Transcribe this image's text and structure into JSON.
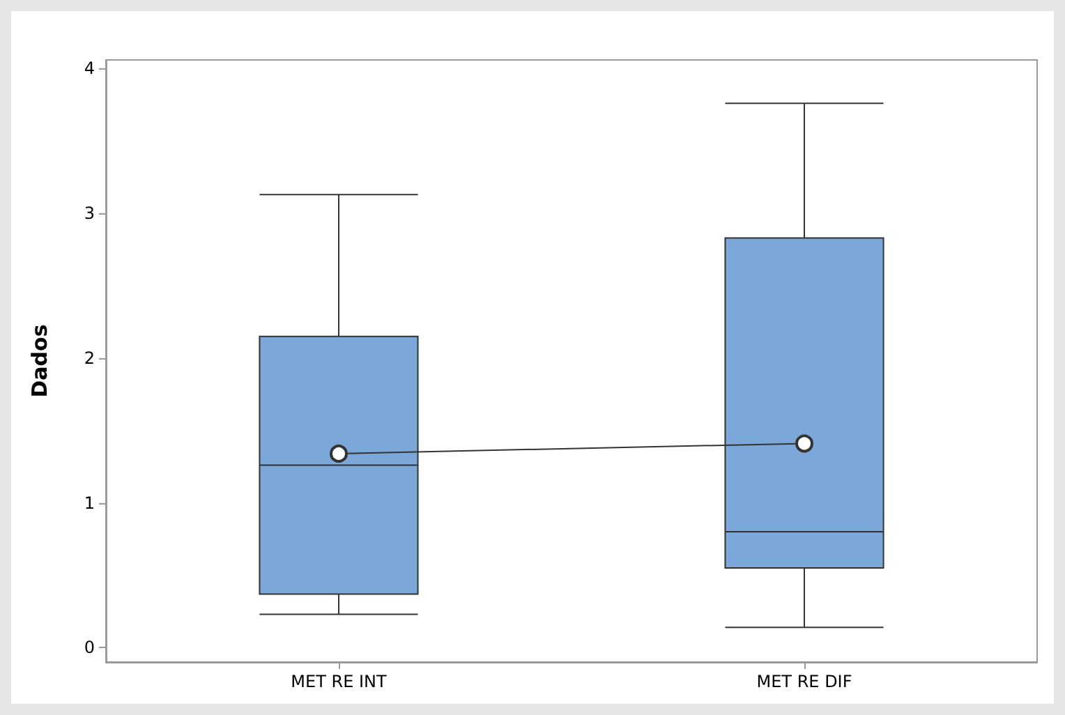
{
  "chart_data": {
    "type": "box",
    "ylabel": "Dados",
    "categories": [
      "MET RE INT",
      "MET RE DIF"
    ],
    "ylim": [
      -0.1,
      4.06
    ],
    "yticks": [
      0,
      1,
      2,
      3,
      4
    ],
    "grid": false,
    "series": [
      {
        "color": "#7ba7d9",
        "boxes": [
          {
            "low": 0.23,
            "q1": 0.37,
            "median": 1.26,
            "q3": 2.15,
            "high": 3.13
          },
          {
            "low": 0.14,
            "q1": 0.55,
            "median": 0.8,
            "q3": 2.83,
            "high": 3.76
          }
        ]
      },
      {
        "type": "line",
        "color": "#333333",
        "marker": "circle",
        "x": [
          "MET RE INT",
          "MET RE DIF"
        ],
        "values": [
          1.34,
          1.41
        ]
      }
    ]
  }
}
